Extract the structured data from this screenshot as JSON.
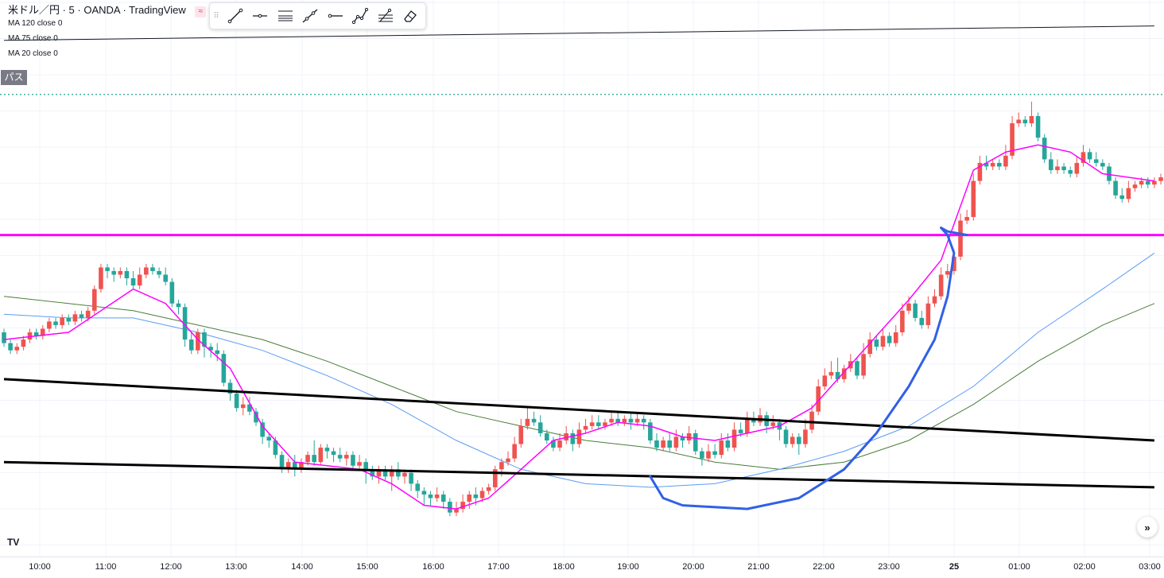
{
  "header": {
    "title": "米ドル／円 · 5 · OANDA · TradingView",
    "title_icon": "sync-icon",
    "mas": [
      "MA 120 close 0",
      "MA 75 close 0",
      "MA 20 close 0"
    ],
    "badge": "パス"
  },
  "toolbar": {
    "tools": [
      "trend-line-icon",
      "horizontal-ray-icon",
      "parallel-channel-icon",
      "extended-line-icon",
      "horizontal-line-icon",
      "path-icon",
      "fib-icon",
      "eraser-icon"
    ]
  },
  "colors": {
    "up": "#ef5350",
    "down": "#26a69a",
    "ma20": "#ff00ff",
    "ma75": "#5b9cf6",
    "ma120": "#4a7d3a",
    "hline": "#ff00ff",
    "dotted": "#089981",
    "drawing": "#3060e6"
  },
  "time_axis": {
    "ticks": [
      "10:00",
      "11:00",
      "12:00",
      "13:00",
      "14:00",
      "15:00",
      "16:00",
      "17:00",
      "18:00",
      "19:00",
      "20:00",
      "21:00",
      "22:00",
      "23:00",
      "25",
      "01:00",
      "02:00",
      "03:00"
    ],
    "bold": [
      "25"
    ]
  },
  "scroll_label": "»",
  "logo": "TV",
  "chart_data": {
    "type": "candlestick",
    "interval": "5",
    "x_labels": [
      "10:00",
      "11:00",
      "12:00",
      "13:00",
      "14:00",
      "15:00",
      "16:00",
      "17:00",
      "18:00",
      "19:00",
      "20:00",
      "21:00",
      "22:00",
      "23:00",
      "25",
      "01:00",
      "02:00",
      "03:00"
    ],
    "candles": [
      [
        100,
        97,
        101,
        96
      ],
      [
        97,
        95,
        98,
        94
      ],
      [
        95,
        96,
        97,
        94
      ],
      [
        96,
        98,
        99,
        95
      ],
      [
        98,
        100,
        101,
        97
      ],
      [
        100,
        99,
        101,
        98
      ],
      [
        99,
        101,
        102,
        98
      ],
      [
        101,
        103,
        104,
        100
      ],
      [
        103,
        102,
        104,
        101
      ],
      [
        102,
        104,
        105,
        101
      ],
      [
        104,
        103,
        105,
        102
      ],
      [
        103,
        105,
        106,
        102
      ],
      [
        105,
        104,
        106,
        103
      ],
      [
        104,
        106,
        107,
        103
      ],
      [
        106,
        112,
        113,
        105
      ],
      [
        112,
        118,
        119,
        111
      ],
      [
        118,
        117,
        119,
        115
      ],
      [
        117,
        116,
        118,
        114
      ],
      [
        116,
        117,
        118,
        115
      ],
      [
        117,
        115,
        118,
        113
      ],
      [
        115,
        113,
        117,
        112
      ],
      [
        113,
        116,
        118,
        112
      ],
      [
        116,
        118,
        119,
        115
      ],
      [
        118,
        117,
        119,
        116
      ],
      [
        117,
        116,
        118,
        115
      ],
      [
        116,
        114,
        118,
        113
      ],
      [
        114,
        108,
        115,
        107
      ],
      [
        108,
        107,
        109,
        105
      ],
      [
        107,
        98,
        108,
        96
      ],
      [
        98,
        95,
        100,
        94
      ],
      [
        95,
        100,
        101,
        94
      ],
      [
        100,
        96,
        101,
        93
      ],
      [
        96,
        95,
        97,
        93
      ],
      [
        95,
        94,
        97,
        92
      ],
      [
        94,
        86,
        95,
        85
      ],
      [
        86,
        83,
        87,
        81
      ],
      [
        83,
        79,
        84,
        78
      ],
      [
        79,
        80,
        82,
        77
      ],
      [
        80,
        78,
        82,
        77
      ],
      [
        78,
        75,
        79,
        74
      ],
      [
        75,
        71,
        76,
        69
      ],
      [
        71,
        70,
        72,
        68
      ],
      [
        70,
        66,
        71,
        65
      ],
      [
        66,
        62,
        67,
        61
      ],
      [
        62,
        64,
        65,
        61
      ],
      [
        64,
        62,
        66,
        60
      ],
      [
        62,
        64,
        65,
        61
      ],
      [
        64,
        66,
        67,
        63
      ],
      [
        66,
        64,
        70,
        63
      ],
      [
        64,
        68,
        69,
        63
      ],
      [
        68,
        67,
        69,
        65
      ],
      [
        67,
        66,
        68,
        64
      ],
      [
        66,
        65,
        68,
        64
      ],
      [
        65,
        66,
        67,
        63
      ],
      [
        66,
        63,
        67,
        62
      ],
      [
        63,
        64,
        66,
        62
      ],
      [
        64,
        62,
        65,
        58
      ],
      [
        62,
        60,
        63,
        59
      ],
      [
        60,
        62,
        63,
        58
      ],
      [
        62,
        60,
        63,
        59
      ],
      [
        60,
        62,
        63,
        56
      ],
      [
        62,
        60,
        64,
        59
      ],
      [
        60,
        61,
        62,
        58
      ],
      [
        61,
        58,
        62,
        56
      ],
      [
        58,
        56,
        59,
        54
      ],
      [
        56,
        55,
        57,
        52
      ],
      [
        55,
        54,
        56,
        52
      ],
      [
        54,
        55,
        57,
        53
      ],
      [
        55,
        53,
        56,
        51
      ],
      [
        53,
        50,
        54,
        49
      ],
      [
        50,
        51,
        53,
        49
      ],
      [
        51,
        53,
        55,
        50
      ],
      [
        53,
        55,
        56,
        51
      ],
      [
        55,
        54,
        57,
        52
      ],
      [
        54,
        56,
        57,
        53
      ],
      [
        56,
        57,
        58,
        55
      ],
      [
        57,
        62,
        63,
        56
      ],
      [
        62,
        64,
        65,
        60
      ],
      [
        64,
        65,
        67,
        63
      ],
      [
        65,
        69,
        71,
        64
      ],
      [
        69,
        74,
        76,
        68
      ],
      [
        74,
        76,
        79,
        73
      ],
      [
        76,
        75,
        78,
        74
      ],
      [
        75,
        72,
        77,
        71
      ],
      [
        72,
        70,
        73,
        69
      ],
      [
        70,
        68,
        71,
        67
      ],
      [
        68,
        70,
        72,
        67
      ],
      [
        70,
        72,
        74,
        69
      ],
      [
        72,
        69,
        73,
        67
      ],
      [
        69,
        73,
        75,
        68
      ],
      [
        73,
        74,
        76,
        72
      ],
      [
        74,
        75,
        77,
        73
      ],
      [
        75,
        74,
        77,
        73
      ],
      [
        74,
        75,
        76,
        73
      ],
      [
        75,
        76,
        78,
        74
      ],
      [
        76,
        75,
        78,
        74
      ],
      [
        75,
        76,
        77,
        74
      ],
      [
        76,
        75,
        78,
        73
      ],
      [
        75,
        76,
        78,
        74
      ],
      [
        76,
        75,
        77,
        73
      ],
      [
        75,
        70,
        76,
        69
      ],
      [
        70,
        68,
        72,
        67
      ],
      [
        68,
        70,
        71,
        67
      ],
      [
        70,
        68,
        72,
        67
      ],
      [
        68,
        71,
        73,
        67
      ],
      [
        71,
        70,
        72,
        68
      ],
      [
        70,
        72,
        74,
        69
      ],
      [
        72,
        67,
        73,
        66
      ],
      [
        67,
        65,
        68,
        63
      ],
      [
        65,
        67,
        69,
        64
      ],
      [
        67,
        66,
        69,
        65
      ],
      [
        66,
        70,
        72,
        65
      ],
      [
        70,
        68,
        72,
        67
      ],
      [
        68,
        73,
        75,
        67
      ],
      [
        73,
        72,
        75,
        71
      ],
      [
        72,
        76,
        78,
        71
      ],
      [
        76,
        75,
        78,
        74
      ],
      [
        75,
        77,
        79,
        74
      ],
      [
        77,
        74,
        78,
        72
      ],
      [
        74,
        75,
        77,
        73
      ],
      [
        75,
        73,
        76,
        70
      ],
      [
        73,
        69,
        74,
        68
      ],
      [
        69,
        71,
        72,
        68
      ],
      [
        71,
        69,
        72,
        66
      ],
      [
        69,
        73,
        76,
        68
      ],
      [
        73,
        78,
        80,
        72
      ],
      [
        78,
        85,
        87,
        77
      ],
      [
        85,
        88,
        90,
        84
      ],
      [
        88,
        89,
        92,
        87
      ],
      [
        89,
        87,
        93,
        86
      ],
      [
        87,
        90,
        91,
        86
      ],
      [
        90,
        92,
        94,
        89
      ],
      [
        92,
        88,
        93,
        87
      ],
      [
        88,
        94,
        97,
        87
      ],
      [
        94,
        98,
        100,
        93
      ],
      [
        98,
        96,
        99,
        95
      ],
      [
        96,
        99,
        101,
        95
      ],
      [
        99,
        97,
        100,
        96
      ],
      [
        97,
        100,
        102,
        96
      ],
      [
        100,
        106,
        108,
        99
      ],
      [
        106,
        108,
        110,
        105
      ],
      [
        108,
        104,
        109,
        103
      ],
      [
        104,
        102,
        106,
        101
      ],
      [
        102,
        108,
        110,
        101
      ],
      [
        108,
        110,
        112,
        107
      ],
      [
        110,
        116,
        118,
        109
      ],
      [
        116,
        117,
        119,
        115
      ],
      [
        117,
        121,
        123,
        116
      ],
      [
        121,
        131,
        133,
        120
      ],
      [
        131,
        132,
        134,
        130
      ],
      [
        132,
        142,
        144,
        131
      ],
      [
        142,
        147,
        149,
        141
      ],
      [
        147,
        146,
        149,
        145
      ],
      [
        146,
        147,
        148,
        145
      ],
      [
        147,
        146,
        148,
        145
      ],
      [
        146,
        149,
        152,
        145
      ],
      [
        149,
        158,
        160,
        148
      ],
      [
        158,
        159,
        161,
        157
      ],
      [
        159,
        158,
        160,
        157
      ],
      [
        158,
        160,
        164,
        157
      ],
      [
        160,
        154,
        161,
        153
      ],
      [
        154,
        148,
        155,
        147
      ],
      [
        148,
        145,
        150,
        144
      ],
      [
        145,
        146,
        148,
        144
      ],
      [
        146,
        145,
        147,
        144
      ],
      [
        145,
        144,
        146,
        143
      ],
      [
        144,
        147,
        149,
        143
      ],
      [
        147,
        150,
        152,
        146
      ],
      [
        150,
        148,
        151,
        147
      ],
      [
        148,
        147,
        150,
        146
      ],
      [
        147,
        146,
        148,
        145
      ],
      [
        146,
        142,
        147,
        141
      ],
      [
        142,
        138,
        143,
        137
      ],
      [
        138,
        137,
        140,
        136
      ],
      [
        137,
        140,
        142,
        136
      ],
      [
        140,
        141,
        142,
        139
      ],
      [
        141,
        142,
        143,
        140
      ],
      [
        142,
        141,
        143,
        140
      ],
      [
        141,
        142,
        143,
        140
      ],
      [
        142,
        143,
        144,
        141
      ]
    ],
    "ma20": [
      [
        0,
        98
      ],
      [
        10,
        100
      ],
      [
        20,
        112
      ],
      [
        25,
        108
      ],
      [
        30,
        98
      ],
      [
        35,
        90
      ],
      [
        40,
        74
      ],
      [
        45,
        64
      ],
      [
        50,
        63
      ],
      [
        55,
        62
      ],
      [
        60,
        58
      ],
      [
        65,
        52
      ],
      [
        70,
        51
      ],
      [
        75,
        54
      ],
      [
        80,
        62
      ],
      [
        85,
        70
      ],
      [
        90,
        72
      ],
      [
        95,
        75
      ],
      [
        100,
        74
      ],
      [
        105,
        71
      ],
      [
        110,
        70
      ],
      [
        115,
        72
      ],
      [
        120,
        74
      ],
      [
        125,
        79
      ],
      [
        130,
        89
      ],
      [
        135,
        99
      ],
      [
        140,
        109
      ],
      [
        145,
        120
      ],
      [
        150,
        145
      ],
      [
        155,
        150
      ],
      [
        160,
        152
      ],
      [
        165,
        150
      ],
      [
        170,
        144
      ],
      [
        178,
        142
      ]
    ],
    "ma75": [
      [
        0,
        105
      ],
      [
        10,
        104
      ],
      [
        20,
        104
      ],
      [
        30,
        100
      ],
      [
        40,
        95
      ],
      [
        50,
        88
      ],
      [
        60,
        80
      ],
      [
        70,
        70
      ],
      [
        80,
        62
      ],
      [
        90,
        58
      ],
      [
        100,
        57
      ],
      [
        110,
        58
      ],
      [
        120,
        62
      ],
      [
        130,
        67
      ],
      [
        140,
        74
      ],
      [
        150,
        85
      ],
      [
        160,
        100
      ],
      [
        170,
        112
      ],
      [
        178,
        122
      ]
    ],
    "ma120": [
      [
        0,
        110
      ],
      [
        10,
        108
      ],
      [
        20,
        106
      ],
      [
        30,
        102
      ],
      [
        40,
        98
      ],
      [
        50,
        92
      ],
      [
        60,
        85
      ],
      [
        70,
        78
      ],
      [
        80,
        74
      ],
      [
        90,
        70
      ],
      [
        100,
        68
      ],
      [
        110,
        64
      ],
      [
        120,
        62
      ],
      [
        130,
        64
      ],
      [
        140,
        70
      ],
      [
        150,
        80
      ],
      [
        160,
        92
      ],
      [
        170,
        102
      ],
      [
        178,
        108
      ]
    ],
    "horizontal_line": 127,
    "dotted_line": 166,
    "top_line": [
      [
        0,
        181
      ],
      [
        178,
        185
      ]
    ],
    "trendlines": [
      [
        [
          0,
          87
        ],
        [
          178,
          70
        ]
      ],
      [
        [
          0,
          64
        ],
        [
          178,
          57
        ]
      ]
    ],
    "ylim": [
      40,
      190
    ]
  }
}
